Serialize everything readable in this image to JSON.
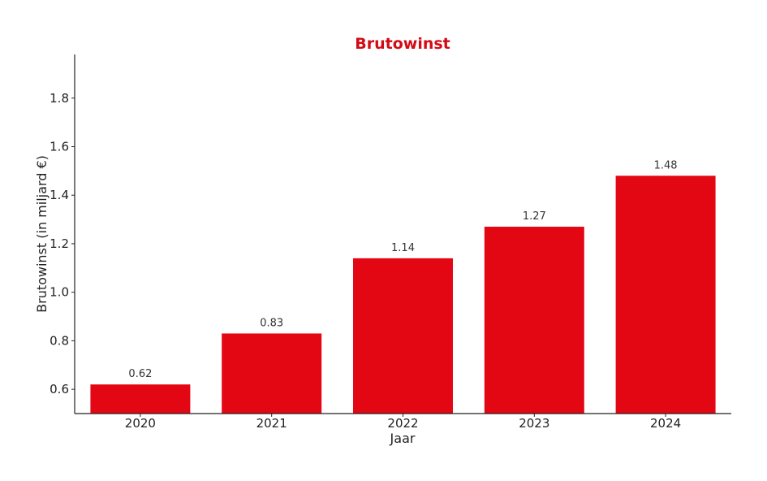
{
  "chart_data": {
    "type": "bar",
    "title": "Brutowinst",
    "xlabel": "Jaar",
    "ylabel": "Brutowinst (in miljard €)",
    "categories": [
      "2020",
      "2021",
      "2022",
      "2023",
      "2024"
    ],
    "values": [
      0.62,
      0.83,
      1.14,
      1.27,
      1.48
    ],
    "value_labels": [
      "0.62",
      "0.83",
      "1.14",
      "1.27",
      "1.48"
    ],
    "ylim": [
      0.5,
      1.98
    ],
    "yticks": [
      0.6,
      0.8,
      1.0,
      1.2,
      1.4,
      1.6,
      1.8
    ],
    "ytick_labels": [
      "0.6",
      "0.8",
      "1.0",
      "1.2",
      "1.4",
      "1.6",
      "1.8"
    ],
    "grid": false,
    "legend": "none",
    "colors": {
      "bar": "#e30613",
      "title": "#d40a14"
    }
  }
}
